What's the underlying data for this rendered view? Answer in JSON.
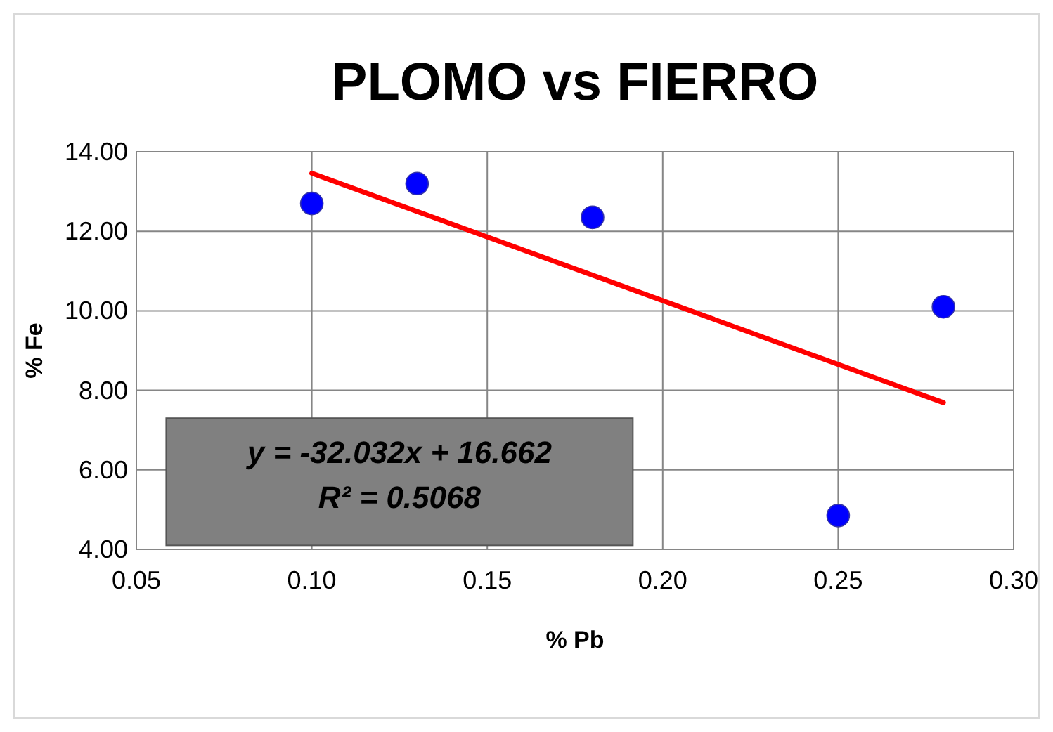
{
  "chart_data": {
    "type": "scatter",
    "title": "PLOMO vs FIERRO",
    "xlabel": "% Pb",
    "ylabel": "% Fe",
    "xlim": [
      0.05,
      0.3
    ],
    "xticks": [
      {
        "value": 0.05,
        "label": "0.05"
      },
      {
        "value": 0.1,
        "label": "0.10"
      },
      {
        "value": 0.15,
        "label": "0.15"
      },
      {
        "value": 0.2,
        "label": "0.20"
      },
      {
        "value": 0.25,
        "label": "0.25"
      },
      {
        "value": 0.3,
        "label": "0.30"
      }
    ],
    "ylim": [
      4,
      14
    ],
    "yticks": [
      {
        "value": 4,
        "label": "4.00"
      },
      {
        "value": 6,
        "label": "6.00"
      },
      {
        "value": 8,
        "label": "8.00"
      },
      {
        "value": 10,
        "label": "10.00"
      },
      {
        "value": 12,
        "label": "12.00"
      },
      {
        "value": 14,
        "label": "14.00"
      }
    ],
    "grid": true,
    "series": [
      {
        "marker": "circle",
        "color": "#0000ff",
        "x": [
          0.1,
          0.13,
          0.18,
          0.25,
          0.28
        ],
        "values": [
          12.7,
          13.2,
          12.35,
          4.85,
          10.1
        ]
      },
      {
        "type": "line",
        "marker": "none",
        "color": "#ff0000",
        "x": [
          0.1,
          0.28
        ],
        "values": [
          13.46,
          7.69
        ]
      }
    ],
    "annotations": [
      "y = -32.032x + 16.662",
      "R² = 0.5068"
    ]
  }
}
